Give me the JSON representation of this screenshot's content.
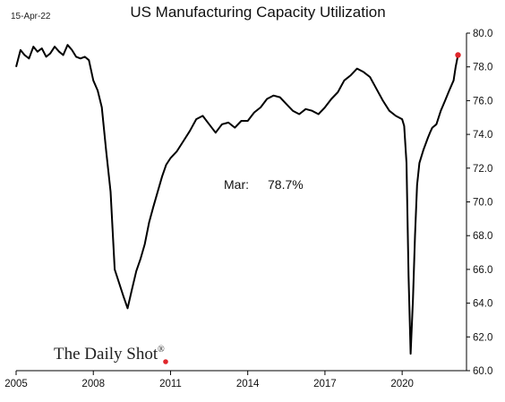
{
  "header": {
    "date": "15-Apr-22",
    "title": "US Manufacturing Capacity Utilization"
  },
  "annotation": {
    "label": "Mar:",
    "value": "78.7%"
  },
  "source": {
    "logo_text": "The Daily Shot",
    "logo_mark": "®"
  },
  "colors": {
    "line": "#000000",
    "latest_marker": "#e0262b",
    "source_dot": "#e0262b",
    "axis": "#000000"
  },
  "chart_data": {
    "type": "line",
    "title": "US Manufacturing Capacity Utilization",
    "xlabel": "",
    "ylabel": "",
    "x_axis": {
      "range": [
        2005,
        2022.5
      ],
      "ticks": [
        2005,
        2008,
        2011,
        2014,
        2017,
        2020
      ],
      "tick_labels": [
        "2005",
        "2008",
        "2011",
        "2014",
        "2017",
        "2020"
      ]
    },
    "y_axis": {
      "side": "right",
      "range": [
        60,
        80
      ],
      "ticks": [
        60,
        62,
        64,
        66,
        68,
        70,
        72,
        74,
        76,
        78,
        80
      ],
      "tick_labels": [
        "60.0",
        "62.0",
        "64.0",
        "66.0",
        "68.0",
        "70.0",
        "72.0",
        "74.0",
        "76.0",
        "78.0",
        "80.0"
      ]
    },
    "grid": false,
    "legend": "none",
    "series": [
      {
        "x": [
          2005.0,
          2005.17,
          2005.33,
          2005.5,
          2005.67,
          2005.83,
          2006.0,
          2006.17,
          2006.33,
          2006.5,
          2006.67,
          2006.83,
          2007.0,
          2007.17,
          2007.33,
          2007.5,
          2007.67,
          2007.83,
          2008.0,
          2008.17,
          2008.33,
          2008.5,
          2008.67,
          2008.83,
          2009.0,
          2009.17,
          2009.33,
          2009.5,
          2009.67,
          2009.83,
          2010.0,
          2010.17,
          2010.33,
          2010.5,
          2010.67,
          2010.83,
          2011.0,
          2011.25,
          2011.5,
          2011.75,
          2012.0,
          2012.25,
          2012.5,
          2012.75,
          2013.0,
          2013.25,
          2013.5,
          2013.75,
          2014.0,
          2014.25,
          2014.5,
          2014.75,
          2015.0,
          2015.25,
          2015.5,
          2015.75,
          2016.0,
          2016.25,
          2016.5,
          2016.75,
          2017.0,
          2017.25,
          2017.5,
          2017.75,
          2018.0,
          2018.25,
          2018.5,
          2018.75,
          2019.0,
          2019.25,
          2019.5,
          2019.75,
          2020.0,
          2020.08,
          2020.17,
          2020.25,
          2020.33,
          2020.42,
          2020.5,
          2020.58,
          2020.67,
          2020.83,
          2021.0,
          2021.08,
          2021.17,
          2021.33,
          2021.5,
          2021.67,
          2021.83,
          2022.0,
          2022.08,
          2022.17
        ],
        "values": [
          78.0,
          79.0,
          78.7,
          78.5,
          79.2,
          78.9,
          79.1,
          78.6,
          78.8,
          79.2,
          78.9,
          78.7,
          79.3,
          79.0,
          78.6,
          78.5,
          78.6,
          78.4,
          77.2,
          76.6,
          75.6,
          73.0,
          70.6,
          66.0,
          65.2,
          64.4,
          63.7,
          64.8,
          65.9,
          66.6,
          67.5,
          68.8,
          69.7,
          70.6,
          71.5,
          72.2,
          72.6,
          73.0,
          73.6,
          74.2,
          74.9,
          75.1,
          74.6,
          74.1,
          74.6,
          74.7,
          74.4,
          74.8,
          74.8,
          75.3,
          75.6,
          76.1,
          76.3,
          76.2,
          75.8,
          75.4,
          75.2,
          75.5,
          75.4,
          75.2,
          75.6,
          76.1,
          76.5,
          77.2,
          77.5,
          77.9,
          77.7,
          77.4,
          76.7,
          76.0,
          75.4,
          75.1,
          74.9,
          74.5,
          72.3,
          65.6,
          61.0,
          64.2,
          68.0,
          71.0,
          72.3,
          73.1,
          73.8,
          74.1,
          74.4,
          74.6,
          75.4,
          76.0,
          76.6,
          77.2,
          78.0,
          78.7
        ]
      }
    ]
  }
}
